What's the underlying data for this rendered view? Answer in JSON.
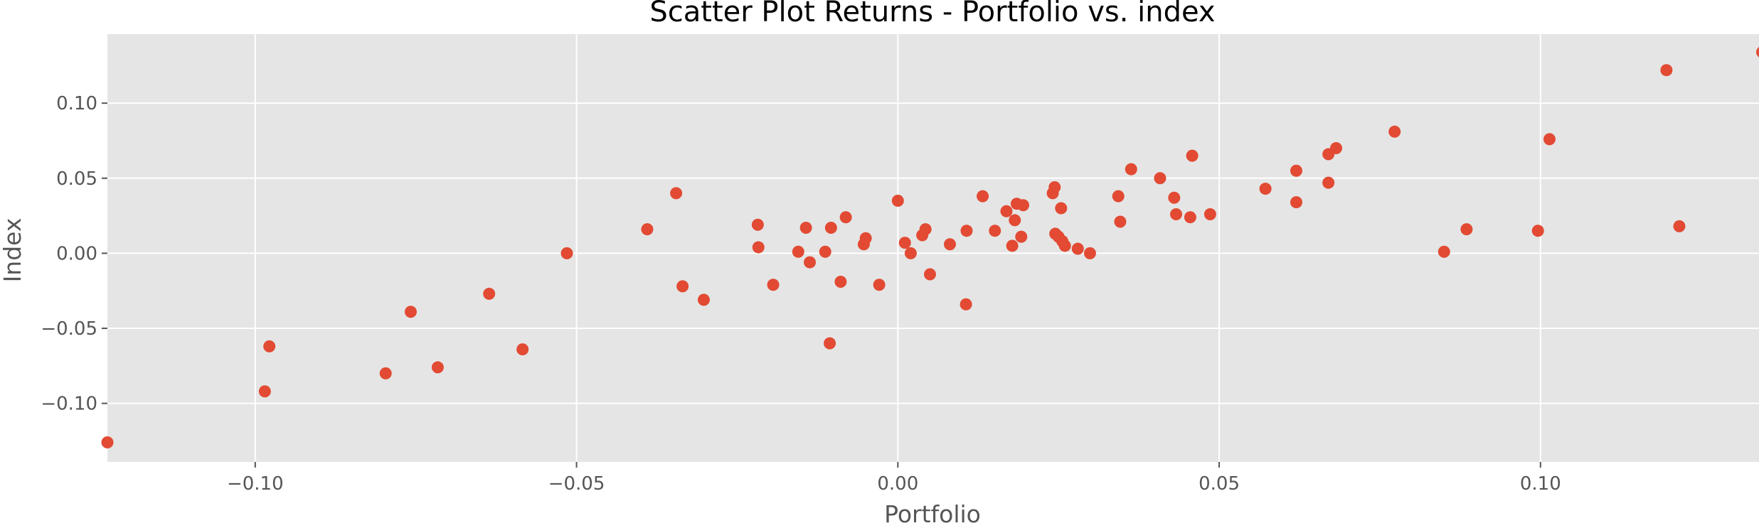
{
  "chart_data": {
    "type": "scatter",
    "title": "Scatter Plot Returns - Portfolio vs. index",
    "xlabel": "Portfolio",
    "ylabel": "Index",
    "xlim": [
      -0.123,
      0.134
    ],
    "ylim": [
      -0.139,
      0.146
    ],
    "x_ticks": [
      -0.1,
      -0.05,
      0.0,
      0.05,
      0.1
    ],
    "x_tick_labels": [
      "−0.10",
      "−0.05",
      "0.00",
      "0.05",
      "0.10"
    ],
    "y_ticks": [
      -0.1,
      -0.05,
      0.0,
      0.05,
      0.1
    ],
    "y_tick_labels": [
      "−0.10",
      "−0.05",
      "0.00",
      "0.05",
      "0.10"
    ],
    "grid": true,
    "style": "ggplot",
    "colors": {
      "background": "#e5e5e5",
      "grid": "#ffffff",
      "point": "#e24a33"
    },
    "series": [
      {
        "x": [
          -0.123,
          -0.0985,
          -0.0978,
          -0.0797,
          -0.0758,
          -0.0716,
          -0.0636,
          -0.0584,
          -0.0515,
          -0.039,
          -0.0345,
          -0.0335,
          -0.0302,
          -0.0218,
          -0.0217,
          -0.0194,
          -0.0155,
          -0.0143,
          -0.0137,
          -0.0113,
          -0.0106,
          -0.0104,
          -0.0089,
          -0.0081,
          -0.0053,
          -0.005,
          -0.0029,
          0.0,
          0.0011,
          0.002,
          0.0038,
          0.0043,
          0.005,
          0.0081,
          0.0106,
          0.0107,
          0.0132,
          0.0151,
          0.0169,
          0.0178,
          0.0182,
          0.0185,
          0.0192,
          0.0195,
          0.0241,
          0.0244,
          0.0245,
          0.025,
          0.0254,
          0.0256,
          0.026,
          0.028,
          0.0299,
          0.0343,
          0.0346,
          0.0363,
          0.0408,
          0.043,
          0.0433,
          0.0455,
          0.0458,
          0.0486,
          0.0572,
          0.062,
          0.062,
          0.067,
          0.067,
          0.0682,
          0.0773,
          0.085,
          0.0885,
          0.0996,
          0.1014,
          0.1196,
          0.1216,
          0.1345
        ],
        "y": [
          -0.126,
          -0.092,
          -0.062,
          -0.08,
          -0.039,
          -0.076,
          -0.027,
          -0.064,
          0.0,
          0.016,
          0.04,
          -0.022,
          -0.031,
          0.019,
          0.004,
          -0.021,
          0.001,
          0.017,
          -0.006,
          0.001,
          -0.06,
          0.017,
          -0.019,
          0.024,
          0.006,
          0.01,
          -0.021,
          0.035,
          0.007,
          0.0,
          0.012,
          0.016,
          -0.014,
          0.006,
          -0.034,
          0.015,
          0.038,
          0.015,
          0.028,
          0.005,
          0.022,
          0.033,
          0.011,
          0.032,
          0.04,
          0.044,
          0.013,
          0.011,
          0.03,
          0.008,
          0.005,
          0.003,
          0.0,
          0.038,
          0.021,
          0.056,
          0.05,
          0.037,
          0.026,
          0.024,
          0.065,
          0.026,
          0.043,
          0.034,
          0.055,
          0.066,
          0.047,
          0.07,
          0.081,
          0.001,
          0.016,
          0.015,
          0.076,
          0.122,
          0.018,
          0.134
        ]
      }
    ]
  }
}
